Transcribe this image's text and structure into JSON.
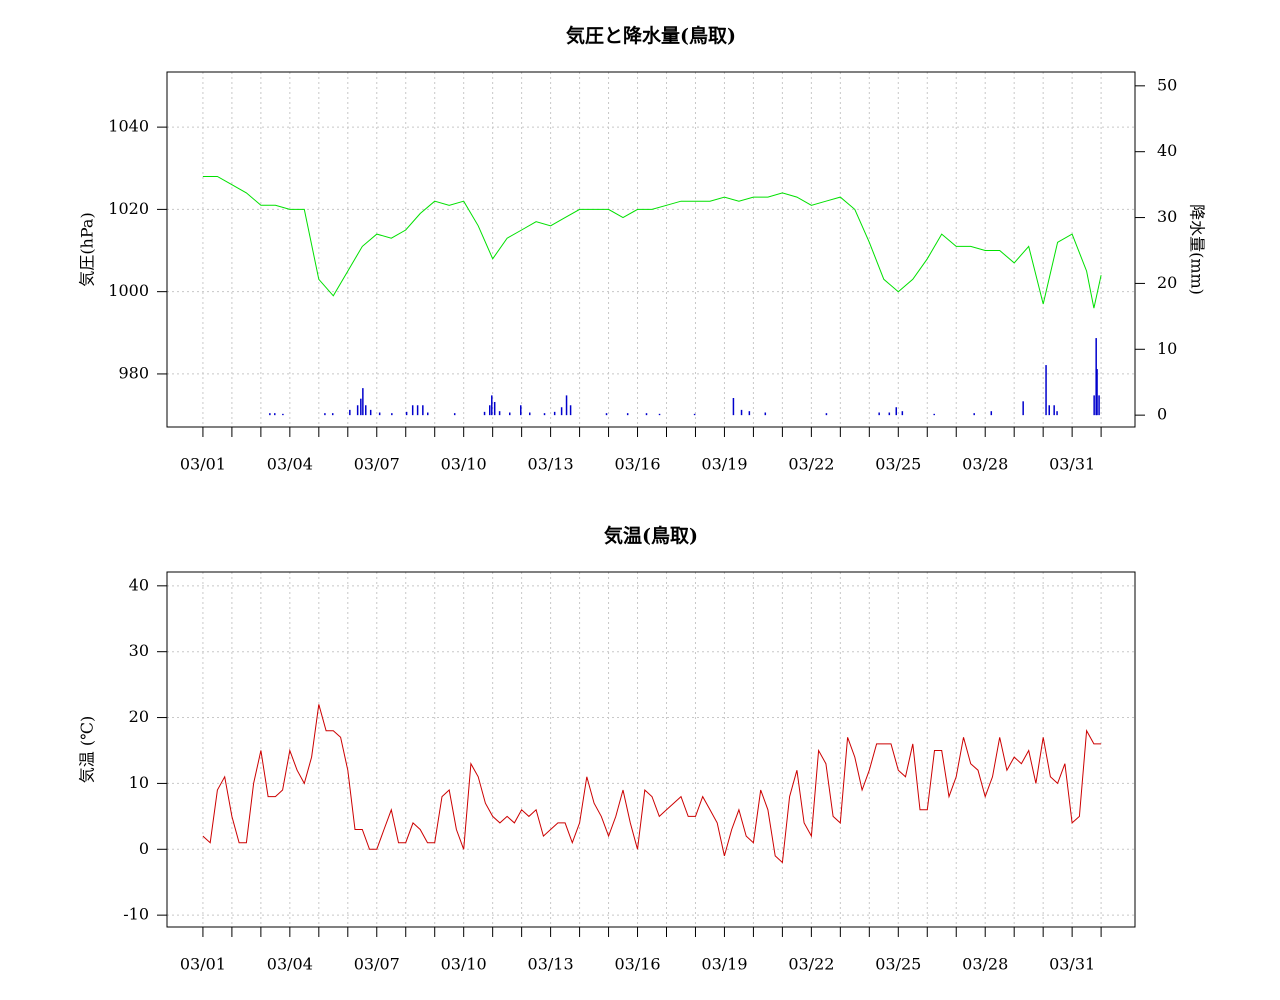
{
  "chart_data": [
    {
      "type": "line",
      "title": "気圧と降水量(鳥取)",
      "ylabel": "気圧(hPa)",
      "y2label": "降水量(mm)",
      "grid": true,
      "xlim": [
        -1.24,
        32.17
      ],
      "ylim": [
        967.1,
        1053.4
      ],
      "y2lim": [
        -1.8,
        52.1
      ],
      "yticks": [
        980,
        1000,
        1020,
        1040
      ],
      "y2ticks": [
        0,
        10,
        20,
        30,
        40,
        50
      ],
      "xticks": [
        {
          "value": 0,
          "label": "03/01"
        },
        {
          "value": 1,
          "label": null
        },
        {
          "value": 2,
          "label": null
        },
        {
          "value": 3,
          "label": "03/04"
        },
        {
          "value": 4,
          "label": null
        },
        {
          "value": 5,
          "label": null
        },
        {
          "value": 6,
          "label": "03/07"
        },
        {
          "value": 7,
          "label": null
        },
        {
          "value": 8,
          "label": null
        },
        {
          "value": 9,
          "label": "03/10"
        },
        {
          "value": 10,
          "label": null
        },
        {
          "value": 11,
          "label": null
        },
        {
          "value": 12,
          "label": "03/13"
        },
        {
          "value": 13,
          "label": null
        },
        {
          "value": 14,
          "label": null
        },
        {
          "value": 15,
          "label": "03/16"
        },
        {
          "value": 16,
          "label": null
        },
        {
          "value": 17,
          "label": null
        },
        {
          "value": 18,
          "label": "03/19"
        },
        {
          "value": 19,
          "label": null
        },
        {
          "value": 20,
          "label": null
        },
        {
          "value": 21,
          "label": "03/22"
        },
        {
          "value": 22,
          "label": null
        },
        {
          "value": 23,
          "label": null
        },
        {
          "value": 24,
          "label": "03/25"
        },
        {
          "value": 25,
          "label": null
        },
        {
          "value": 26,
          "label": null
        },
        {
          "value": 27,
          "label": "03/28"
        },
        {
          "value": 28,
          "label": null
        },
        {
          "value": 29,
          "label": null
        },
        {
          "value": 30,
          "label": "03/31"
        },
        {
          "value": 31,
          "label": null
        }
      ],
      "series": [
        {
          "type": "line",
          "color": "#00e000",
          "axis": "y",
          "x": [
            0,
            0.5,
            1,
            1.5,
            2,
            2.5,
            3,
            3.5,
            4,
            4.5,
            5,
            5.5,
            6,
            6.5,
            7,
            7.5,
            8,
            8.5,
            9,
            9.5,
            10,
            10.5,
            11,
            11.5,
            12,
            12.5,
            13,
            13.5,
            14,
            14.5,
            15,
            15.5,
            16,
            16.5,
            17,
            17.5,
            18,
            18.5,
            19,
            19.5,
            20,
            20.5,
            21,
            21.5,
            22,
            22.5,
            23,
            23.5,
            24,
            24.5,
            25,
            25.5,
            26,
            26.5,
            27,
            27.5,
            28,
            28.5,
            29,
            29.5,
            30,
            30.5,
            30.75,
            31
          ],
          "values": [
            1028,
            1028,
            1026,
            1024,
            1021,
            1021,
            1020,
            1020,
            1003,
            999,
            1005,
            1011,
            1014,
            1013,
            1015,
            1019,
            1022,
            1021,
            1022,
            1016,
            1008,
            1013,
            1015,
            1017,
            1016,
            1018,
            1020,
            1020,
            1020,
            1018,
            1020,
            1020,
            1021,
            1022,
            1022,
            1022,
            1023,
            1022,
            1023,
            1023,
            1024,
            1023,
            1021,
            1022,
            1023,
            1020,
            1012,
            1003,
            1000,
            1003,
            1008,
            1014,
            1011,
            1011,
            1010,
            1010,
            1007,
            1011,
            997,
            1012,
            1014,
            1005,
            996,
            1004
          ]
        },
        {
          "type": "bar",
          "color": "#0000cc",
          "axis": "y2",
          "x": [
            2.31,
            2.48,
            2.76,
            4.21,
            4.48,
            5.07,
            5.34,
            5.45,
            5.52,
            5.62,
            5.79,
            6.1,
            6.52,
            7.03,
            7.24,
            7.41,
            7.59,
            7.76,
            8.69,
            9.72,
            9.9,
            9.97,
            10.07,
            10.24,
            10.59,
            10.97,
            11.28,
            11.79,
            12.14,
            12.38,
            12.55,
            12.69,
            13.93,
            14.66,
            15.31,
            15.76,
            16.97,
            18.31,
            18.59,
            18.86,
            19.41,
            21.52,
            23.34,
            23.69,
            23.93,
            24.14,
            25.24,
            26.62,
            27.21,
            28.31,
            29.1,
            29.21,
            29.38,
            29.48,
            30.76,
            30.83,
            30.86,
            30.93
          ],
          "values": [
            0.3,
            0.3,
            0.2,
            0.3,
            0.3,
            0.8,
            1.5,
            2.5,
            4.1,
            1.5,
            0.8,
            0.4,
            0.3,
            0.5,
            1.5,
            1.5,
            1.5,
            0.4,
            0.3,
            0.5,
            1.5,
            3.0,
            2,
            0.6,
            0.4,
            1.5,
            0.4,
            0.3,
            0.5,
            1.2,
            3.0,
            1.5,
            0.3,
            0.3,
            0.3,
            0.2,
            0.2,
            2.6,
            0.8,
            0.6,
            0.4,
            0.3,
            0.4,
            0.4,
            1.2,
            0.6,
            0.2,
            0.3,
            0.6,
            2.1,
            7.6,
            1.5,
            1.5,
            0.6,
            3,
            11.7,
            7,
            3
          ]
        }
      ]
    },
    {
      "type": "line",
      "title": "気温(鳥取)",
      "ylabel": "気温 (℃)",
      "grid": true,
      "xlim": [
        -1.24,
        32.17
      ],
      "ylim": [
        -11.8,
        42.1
      ],
      "yticks": [
        -10,
        0,
        10,
        20,
        30,
        40
      ],
      "xticks": [
        {
          "value": 0,
          "label": "03/01"
        },
        {
          "value": 1,
          "label": null
        },
        {
          "value": 2,
          "label": null
        },
        {
          "value": 3,
          "label": "03/04"
        },
        {
          "value": 4,
          "label": null
        },
        {
          "value": 5,
          "label": null
        },
        {
          "value": 6,
          "label": "03/07"
        },
        {
          "value": 7,
          "label": null
        },
        {
          "value": 8,
          "label": null
        },
        {
          "value": 9,
          "label": "03/10"
        },
        {
          "value": 10,
          "label": null
        },
        {
          "value": 11,
          "label": null
        },
        {
          "value": 12,
          "label": "03/13"
        },
        {
          "value": 13,
          "label": null
        },
        {
          "value": 14,
          "label": null
        },
        {
          "value": 15,
          "label": "03/16"
        },
        {
          "value": 16,
          "label": null
        },
        {
          "value": 17,
          "label": null
        },
        {
          "value": 18,
          "label": "03/19"
        },
        {
          "value": 19,
          "label": null
        },
        {
          "value": 20,
          "label": null
        },
        {
          "value": 21,
          "label": "03/22"
        },
        {
          "value": 22,
          "label": null
        },
        {
          "value": 23,
          "label": null
        },
        {
          "value": 24,
          "label": "03/25"
        },
        {
          "value": 25,
          "label": null
        },
        {
          "value": 26,
          "label": null
        },
        {
          "value": 27,
          "label": "03/28"
        },
        {
          "value": 28,
          "label": null
        },
        {
          "value": 29,
          "label": null
        },
        {
          "value": 30,
          "label": "03/31"
        },
        {
          "value": 31,
          "label": null
        }
      ],
      "series": [
        {
          "type": "line",
          "color": "#cc0000",
          "axis": "y",
          "x": [
            0,
            0.25,
            0.5,
            0.75,
            1,
            1.25,
            1.5,
            1.75,
            2,
            2.25,
            2.5,
            2.75,
            3,
            3.25,
            3.5,
            3.75,
            4,
            4.25,
            4.5,
            4.75,
            5,
            5.25,
            5.5,
            5.75,
            6,
            6.25,
            6.5,
            6.75,
            7,
            7.25,
            7.5,
            7.75,
            8,
            8.25,
            8.5,
            8.75,
            9,
            9.25,
            9.5,
            9.75,
            10,
            10.25,
            10.5,
            10.75,
            11,
            11.25,
            11.5,
            11.75,
            12,
            12.25,
            12.5,
            12.75,
            13,
            13.25,
            13.5,
            13.75,
            14,
            14.25,
            14.5,
            14.75,
            15,
            15.25,
            15.5,
            15.75,
            16,
            16.25,
            16.5,
            16.75,
            17,
            17.25,
            17.5,
            17.75,
            18,
            18.25,
            18.5,
            18.75,
            19,
            19.25,
            19.5,
            19.75,
            20,
            20.25,
            20.5,
            20.75,
            21,
            21.25,
            21.5,
            21.75,
            22,
            22.25,
            22.5,
            22.75,
            23,
            23.25,
            23.5,
            23.75,
            24,
            24.25,
            24.5,
            24.75,
            25,
            25.25,
            25.5,
            25.75,
            26,
            26.25,
            26.5,
            26.75,
            27,
            27.25,
            27.5,
            27.75,
            28,
            28.25,
            28.5,
            28.75,
            29,
            29.25,
            29.5,
            29.75,
            30,
            30.25,
            30.5,
            30.75,
            31
          ],
          "values": [
            2,
            1,
            9,
            11,
            5,
            1,
            1,
            10,
            15,
            8,
            8,
            9,
            15,
            12,
            10,
            14,
            22,
            18,
            18,
            17,
            12,
            3,
            3,
            0,
            0,
            3,
            6,
            1,
            1,
            4,
            3,
            1,
            1,
            8,
            9,
            3,
            0,
            13,
            11,
            7,
            5,
            4,
            5,
            4,
            6,
            5,
            6,
            2,
            3,
            4,
            4,
            1,
            4,
            11,
            7,
            5,
            2,
            5,
            9,
            4,
            0,
            9,
            8,
            5,
            6,
            7,
            8,
            5,
            5,
            8,
            6,
            4,
            -1,
            3,
            6,
            2,
            1,
            9,
            6,
            -1,
            -2,
            8,
            12,
            4,
            2,
            15,
            13,
            5,
            4,
            17,
            14,
            9,
            12,
            16,
            16,
            16,
            12,
            11,
            16,
            6,
            6,
            15,
            15,
            8,
            11,
            17,
            13,
            12,
            8,
            11,
            17,
            12,
            14,
            13,
            15,
            10,
            17,
            11,
            10,
            13,
            4,
            5,
            18,
            16,
            16
          ]
        }
      ]
    }
  ]
}
